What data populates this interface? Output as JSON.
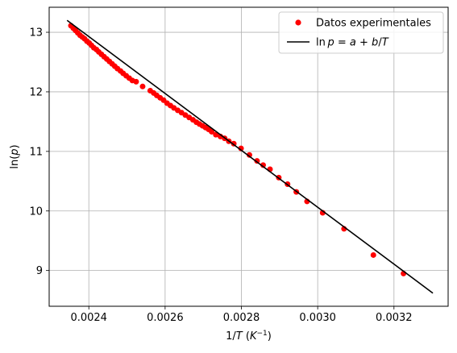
{
  "chart_data": {
    "type": "scatter",
    "xlabel": "1/T (K⁻¹)",
    "ylabel": "ln(p)",
    "xlim": [
      0.002296,
      0.003342
    ],
    "ylim": [
      8.4,
      13.42
    ],
    "grid": true,
    "legend_position": "top-right",
    "x_ticks": [
      {
        "value": 0.0024,
        "label": "0.0024"
      },
      {
        "value": 0.0026,
        "label": "0.0026"
      },
      {
        "value": 0.0028,
        "label": "0.0028"
      },
      {
        "value": 0.003,
        "label": "0.0030"
      },
      {
        "value": 0.0032,
        "label": "0.0032"
      }
    ],
    "y_ticks": [
      {
        "value": 9,
        "label": "9"
      },
      {
        "value": 10,
        "label": "10"
      },
      {
        "value": 11,
        "label": "11"
      },
      {
        "value": 12,
        "label": "12"
      },
      {
        "value": 13,
        "label": "13"
      }
    ],
    "series": [
      {
        "name": "Datos experimentales",
        "kind": "scatter",
        "color": "#ff0000",
        "x": [
          0.002353,
          0.002359,
          0.002365,
          0.002371,
          0.002377,
          0.002383,
          0.002389,
          0.002395,
          0.002401,
          0.002407,
          0.002413,
          0.00242,
          0.002426,
          0.002433,
          0.00244,
          0.002447,
          0.002454,
          0.002461,
          0.002468,
          0.002475,
          0.002483,
          0.00249,
          0.002498,
          0.002506,
          0.002514,
          0.002524,
          0.002541,
          0.002561,
          0.00257,
          0.002578,
          0.002587,
          0.002596,
          0.002605,
          0.002614,
          0.002623,
          0.002633,
          0.002643,
          0.002653,
          0.002663,
          0.002673,
          0.002682,
          0.00269,
          0.002698,
          0.002706,
          0.002714,
          0.002722,
          0.002733,
          0.002745,
          0.002756,
          0.002767,
          0.00278,
          0.002799,
          0.002821,
          0.002841,
          0.002857,
          0.002875,
          0.002898,
          0.002921,
          0.002944,
          0.002972,
          0.003013,
          0.003069,
          0.003146,
          0.003225
        ],
        "y": [
          13.11,
          13.07,
          13.03,
          12.99,
          12.95,
          12.92,
          12.89,
          12.85,
          12.82,
          12.78,
          12.74,
          12.71,
          12.67,
          12.63,
          12.59,
          12.55,
          12.51,
          12.47,
          12.43,
          12.39,
          12.35,
          12.31,
          12.27,
          12.23,
          12.19,
          12.17,
          12.09,
          12.02,
          11.98,
          11.94,
          11.9,
          11.86,
          11.81,
          11.77,
          11.73,
          11.69,
          11.65,
          11.61,
          11.57,
          11.53,
          11.49,
          11.46,
          11.43,
          11.4,
          11.37,
          11.33,
          11.28,
          11.25,
          11.22,
          11.17,
          11.13,
          11.05,
          10.94,
          10.84,
          10.77,
          10.7,
          10.56,
          10.45,
          10.32,
          10.16,
          9.97,
          9.7,
          9.26,
          8.95
        ]
      },
      {
        "name": "ln p = a + b/T",
        "kind": "line",
        "color": "#000000",
        "x": [
          0.002343,
          0.003302
        ],
        "y": [
          13.2,
          8.62
        ]
      }
    ],
    "legend": [
      {
        "label": "Datos experimentales"
      },
      {
        "label": "ln p = a + b/T"
      }
    ]
  }
}
